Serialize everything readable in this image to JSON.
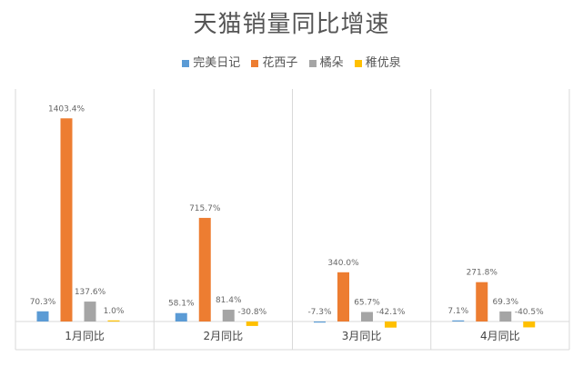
{
  "chart_data": {
    "type": "bar",
    "title": "天猫销量同比增速",
    "categories": [
      "1月同比",
      "2月同比",
      "3月同比",
      "4月同比"
    ],
    "series": [
      {
        "name": "完美日记",
        "color": "#5b9bd5",
        "values": [
          70.3,
          58.1,
          -7.3,
          7.1
        ],
        "labels": [
          "70.3%",
          "58.1%",
          "-7.3%",
          "7.1%"
        ]
      },
      {
        "name": "花西子",
        "color": "#ed7d31",
        "values": [
          1403.4,
          715.7,
          340.0,
          271.8
        ],
        "labels": [
          "1403.4%",
          "715.7%",
          "340.0%",
          "271.8%"
        ]
      },
      {
        "name": "橘朵",
        "color": "#a5a5a5",
        "values": [
          137.6,
          81.4,
          65.7,
          69.3
        ],
        "labels": [
          "137.6%",
          "81.4%",
          "65.7%",
          "69.3%"
        ]
      },
      {
        "name": "稚优泉",
        "color": "#ffc000",
        "values": [
          1.0,
          -30.8,
          -42.1,
          -40.5
        ],
        "labels": [
          "1.0%",
          "-30.8%",
          "-42.1%",
          "-40.5%"
        ]
      }
    ],
    "legend_position": "top",
    "grid": false,
    "ylim": [
      -150,
      1600
    ]
  }
}
